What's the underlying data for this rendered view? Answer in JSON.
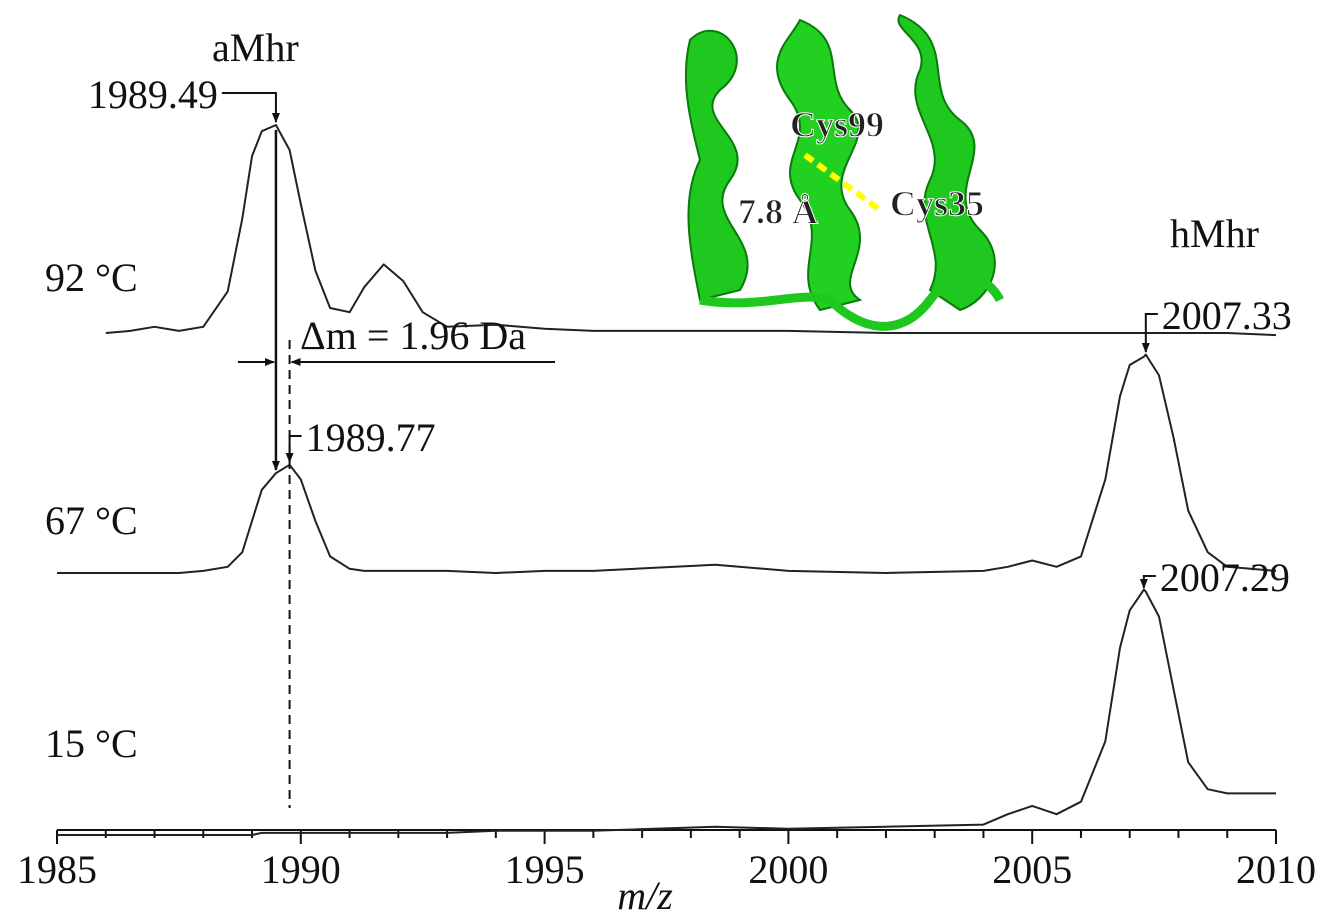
{
  "chart_data": {
    "type": "line",
    "xlabel": "m/z",
    "xlim": [
      1985,
      2010
    ],
    "xticks": [
      1985,
      1990,
      1995,
      2000,
      2005,
      2010
    ],
    "xticks_minor": [
      1986,
      1987,
      1988,
      1989,
      1991,
      1992,
      1993,
      1994,
      1996,
      1997,
      1998,
      1999,
      2001,
      2002,
      2003,
      2004,
      2006,
      2007,
      2008,
      2009
    ],
    "x": [
      1985,
      1986,
      1986.5,
      1987,
      1987.5,
      1988,
      1988.5,
      1988.8,
      1989.0,
      1989.2,
      1989.49,
      1989.77,
      1990.0,
      1990.3,
      1990.6,
      1991.0,
      1991.3,
      1991.7,
      1992.1,
      1992.5,
      1993,
      1994,
      1995,
      1996,
      1998.5,
      2000,
      2002,
      2004,
      2004.5,
      2005,
      2005.5,
      2006,
      2006.5,
      2006.8,
      2007.0,
      2007.29,
      2007.33,
      2007.6,
      2007.9,
      2008.2,
      2008.6,
      2009,
      2010
    ],
    "series": [
      {
        "name": "92 °C",
        "color": "#222222",
        "values": [
          null,
          0,
          1,
          3,
          1,
          3,
          20,
          55,
          85,
          97,
          100,
          88,
          62,
          30,
          12,
          10,
          22,
          33,
          25,
          10,
          3,
          4,
          2,
          1,
          1,
          1,
          0,
          0,
          0,
          0,
          0,
          0,
          0,
          0,
          0,
          0,
          0,
          0,
          0,
          0,
          0,
          0,
          -1
        ]
      },
      {
        "name": "67 °C",
        "color": "#222222",
        "values": [
          0,
          0,
          0,
          0,
          0,
          1,
          3,
          10,
          25,
          40,
          48,
          52,
          45,
          25,
          8,
          2,
          1,
          1,
          1,
          1,
          1,
          0,
          1,
          1,
          4,
          1,
          0,
          1,
          3,
          6,
          3,
          8,
          45,
          85,
          100,
          104,
          105,
          95,
          65,
          30,
          10,
          3,
          1
        ]
      },
      {
        "name": "15 °C",
        "color": "#222222",
        "values": [
          0,
          0,
          0,
          0,
          0,
          0,
          0,
          0,
          0,
          1,
          1,
          1,
          1,
          1,
          1,
          1,
          1,
          1,
          1,
          1,
          1,
          2,
          2,
          2,
          4,
          3,
          4,
          5,
          10,
          14,
          10,
          16,
          45,
          90,
          108,
          118,
          117,
          105,
          70,
          35,
          22,
          20,
          20
        ]
      }
    ],
    "annotations": [
      "aMhr",
      "hMhr"
    ],
    "peak_labels": [
      {
        "text": "1989.49",
        "x": 1989.49
      },
      {
        "text": "2007.33",
        "x": 2007.33
      },
      {
        "text": "1989.77",
        "x": 1989.77
      },
      {
        "text": "2007.29",
        "x": 2007.29
      }
    ],
    "delta_label": "Δm = 1.96 Da",
    "inset_labels": [
      "Cys99",
      "Cys35",
      "7.8 Å"
    ]
  }
}
